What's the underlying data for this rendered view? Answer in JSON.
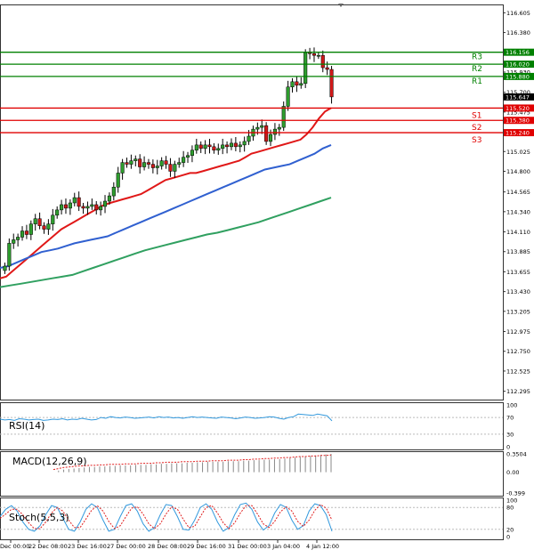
{
  "chart_data": [
    {
      "type": "candlestick",
      "title": "",
      "ylim": [
        112.2,
        116.7
      ],
      "y_ticks": [
        116.605,
        116.38,
        116.155,
        115.93,
        115.7,
        115.475,
        115.25,
        115.025,
        114.8,
        114.565,
        114.34,
        114.11,
        113.885,
        113.655,
        113.43,
        113.205,
        112.975,
        112.75,
        112.525,
        112.295
      ],
      "x_tick_labels": [
        "Dec 00:00",
        "22 Dec 08:00",
        "23 Dec 16:00",
        "27 Dec 00:00",
        "28 Dec 08:00",
        "29 Dec 16:00",
        "31 Dec 00:00",
        "3 Jan 04:00",
        "4 Jan 12:00"
      ],
      "current_price": {
        "value": 115.647,
        "label": "115.647"
      },
      "levels": [
        {
          "name": "R3",
          "value": 116.156,
          "label": "116.156",
          "color": "#008000"
        },
        {
          "name": "R2",
          "value": 116.02,
          "label": "116.020",
          "color": "#008000"
        },
        {
          "name": "R1",
          "value": 115.88,
          "label": "115.880",
          "color": "#008000"
        },
        {
          "name": "S1",
          "value": 115.52,
          "label": "115.520",
          "color": "#e00000"
        },
        {
          "name": "S2",
          "value": 115.38,
          "label": "115.380",
          "color": "#e00000"
        },
        {
          "name": "S3",
          "value": 115.24,
          "label": "115.240",
          "color": "#e00000"
        }
      ],
      "candles_close": [
        113.72,
        113.98,
        114.02,
        114.05,
        114.12,
        114.08,
        114.2,
        114.26,
        114.18,
        114.14,
        114.2,
        114.3,
        114.36,
        114.42,
        114.38,
        114.44,
        114.5,
        114.4,
        114.38,
        114.4,
        114.42,
        114.36,
        114.4,
        114.46,
        114.52,
        114.62,
        114.78,
        114.9,
        114.88,
        114.92,
        114.94,
        114.85,
        114.9,
        114.88,
        114.84,
        114.86,
        114.92,
        114.88,
        114.8,
        114.88,
        114.9,
        114.96,
        114.98,
        115.04,
        115.1,
        115.06,
        115.1,
        115.08,
        115.04,
        115.06,
        115.1,
        115.08,
        115.12,
        115.08,
        115.1,
        115.14,
        115.2,
        115.28,
        115.3,
        115.32,
        115.14,
        115.22,
        115.28,
        115.3,
        115.54,
        115.76,
        115.82,
        115.78,
        115.8,
        116.15,
        116.14,
        116.12,
        116.12,
        115.98,
        115.96,
        115.647
      ],
      "series": [
        {
          "name": "",
          "color": "#e01818",
          "values": [
            113.58,
            113.6,
            113.66,
            113.72,
            113.78,
            113.84,
            113.9,
            113.96,
            114.02,
            114.08,
            114.14,
            114.18,
            114.22,
            114.26,
            114.3,
            114.34,
            114.38,
            114.42,
            114.44,
            114.46,
            114.48,
            114.5,
            114.52,
            114.54,
            114.58,
            114.62,
            114.66,
            114.7,
            114.72,
            114.74,
            114.76,
            114.78,
            114.78,
            114.8,
            114.82,
            114.84,
            114.86,
            114.88,
            114.9,
            114.92,
            114.96,
            115.0,
            115.02,
            115.04,
            115.06,
            115.08,
            115.1,
            115.12,
            115.14,
            115.16,
            115.22,
            115.3,
            115.4,
            115.48,
            115.52
          ]
        },
        {
          "name": "",
          "color": "#3060d0",
          "values": [
            113.7,
            113.72,
            113.76,
            113.8,
            113.84,
            113.88,
            113.9,
            113.92,
            113.95,
            113.98,
            114.0,
            114.02,
            114.04,
            114.06,
            114.1,
            114.14,
            114.18,
            114.22,
            114.26,
            114.3,
            114.34,
            114.38,
            114.42,
            114.46,
            114.5,
            114.54,
            114.58,
            114.62,
            114.66,
            114.7,
            114.74,
            114.78,
            114.82,
            114.84,
            114.86,
            114.88,
            114.92,
            114.96,
            115.0,
            115.06,
            115.1
          ]
        },
        {
          "name": "",
          "color": "#30a060",
          "values": [
            113.48,
            113.5,
            113.52,
            113.54,
            113.56,
            113.58,
            113.6,
            113.62,
            113.66,
            113.7,
            113.74,
            113.78,
            113.82,
            113.86,
            113.9,
            113.93,
            113.96,
            113.99,
            114.02,
            114.05,
            114.08,
            114.1,
            114.13,
            114.16,
            114.19,
            114.22,
            114.26,
            114.3,
            114.34,
            114.38,
            114.42,
            114.46,
            114.5
          ]
        }
      ]
    },
    {
      "type": "line",
      "indicator": "RSI(14)",
      "label": "RSI(14)",
      "ylim": [
        0,
        100
      ],
      "y_ticks": [
        "100",
        "70",
        "30",
        "0"
      ],
      "series": [
        {
          "name": "RSI(14)",
          "color": "#3399dd",
          "values": [
            66,
            64,
            65,
            63,
            67,
            66,
            64,
            65,
            66,
            63,
            64,
            66,
            65,
            67,
            64,
            66,
            65,
            68,
            66,
            64,
            65,
            70,
            68,
            72,
            70,
            69,
            71,
            70,
            68,
            69,
            70,
            71,
            69,
            72,
            70,
            71,
            69,
            70,
            68,
            70,
            72,
            70,
            71,
            70,
            69,
            68,
            71,
            70,
            69,
            67,
            69,
            71,
            70,
            68,
            69,
            70,
            72,
            71,
            68,
            66,
            70,
            72,
            78,
            77,
            76,
            75,
            78,
            76,
            74,
            62
          ]
        }
      ]
    },
    {
      "type": "bar",
      "indicator": "MACD(12,26,9)",
      "label": "MACD(12,26,9)",
      "y_ticks": [
        "0.3504",
        "0.00",
        "-0.399"
      ],
      "values": [
        0.0,
        0.03,
        0.05,
        0.06,
        0.07,
        0.08,
        0.09,
        0.1,
        0.1,
        0.11,
        0.11,
        0.12,
        0.12,
        0.13,
        0.13,
        0.13,
        0.14,
        0.14,
        0.14,
        0.15,
        0.15,
        0.16,
        0.16,
        0.17,
        0.17,
        0.17,
        0.18,
        0.18,
        0.19,
        0.19,
        0.2,
        0.2,
        0.2,
        0.2,
        0.21,
        0.21,
        0.21,
        0.22,
        0.22,
        0.23,
        0.23,
        0.24,
        0.24,
        0.25,
        0.25,
        0.26,
        0.27,
        0.28,
        0.29,
        0.3,
        0.31,
        0.32,
        0.33,
        0.34,
        0.35
      ],
      "signal": [
        0.05,
        0.07,
        0.09,
        0.1,
        0.11,
        0.12,
        0.12,
        0.13,
        0.13,
        0.14,
        0.14,
        0.15,
        0.15,
        0.15,
        0.16,
        0.16,
        0.16,
        0.17,
        0.17,
        0.17,
        0.18,
        0.18,
        0.19,
        0.19,
        0.19,
        0.2,
        0.2,
        0.2,
        0.21,
        0.21,
        0.21,
        0.22,
        0.22,
        0.22,
        0.23,
        0.23,
        0.23,
        0.24,
        0.24,
        0.25,
        0.25,
        0.26,
        0.26,
        0.27,
        0.27,
        0.28,
        0.28,
        0.29,
        0.3,
        0.3,
        0.31,
        0.31,
        0.32,
        0.32,
        0.33
      ],
      "bar_color": "#888888",
      "signal_color": "#e02020"
    },
    {
      "type": "line",
      "indicator": "Stoch(5,5,3)",
      "label": "Stoch(5,5,3)",
      "ylim": [
        0,
        100
      ],
      "y_ticks": [
        "100",
        "80",
        "20",
        "0"
      ],
      "series": [
        {
          "name": "%K",
          "color": "#3399dd",
          "values": [
            55,
            75,
            85,
            70,
            40,
            20,
            15,
            30,
            60,
            85,
            80,
            50,
            20,
            15,
            40,
            75,
            90,
            80,
            45,
            15,
            20,
            55,
            85,
            90,
            70,
            35,
            15,
            25,
            60,
            88,
            85,
            55,
            20,
            18,
            45,
            80,
            90,
            75,
            40,
            15,
            25,
            60,
            88,
            92,
            75,
            40,
            18,
            30,
            65,
            88,
            80,
            45,
            20,
            30,
            70,
            90,
            85,
            60,
            15
          ]
        },
        {
          "name": "%D",
          "color": "#e02020",
          "values": [
            50,
            62,
            75,
            75,
            60,
            38,
            22,
            22,
            40,
            65,
            80,
            70,
            45,
            25,
            25,
            48,
            72,
            85,
            70,
            42,
            22,
            30,
            55,
            78,
            82,
            62,
            35,
            22,
            35,
            62,
            82,
            75,
            48,
            25,
            28,
            55,
            80,
            85,
            65,
            38,
            22,
            38,
            65,
            85,
            85,
            62,
            35,
            25,
            42,
            68,
            82,
            70,
            42,
            28,
            45,
            72,
            88,
            78,
            45
          ]
        }
      ]
    }
  ]
}
